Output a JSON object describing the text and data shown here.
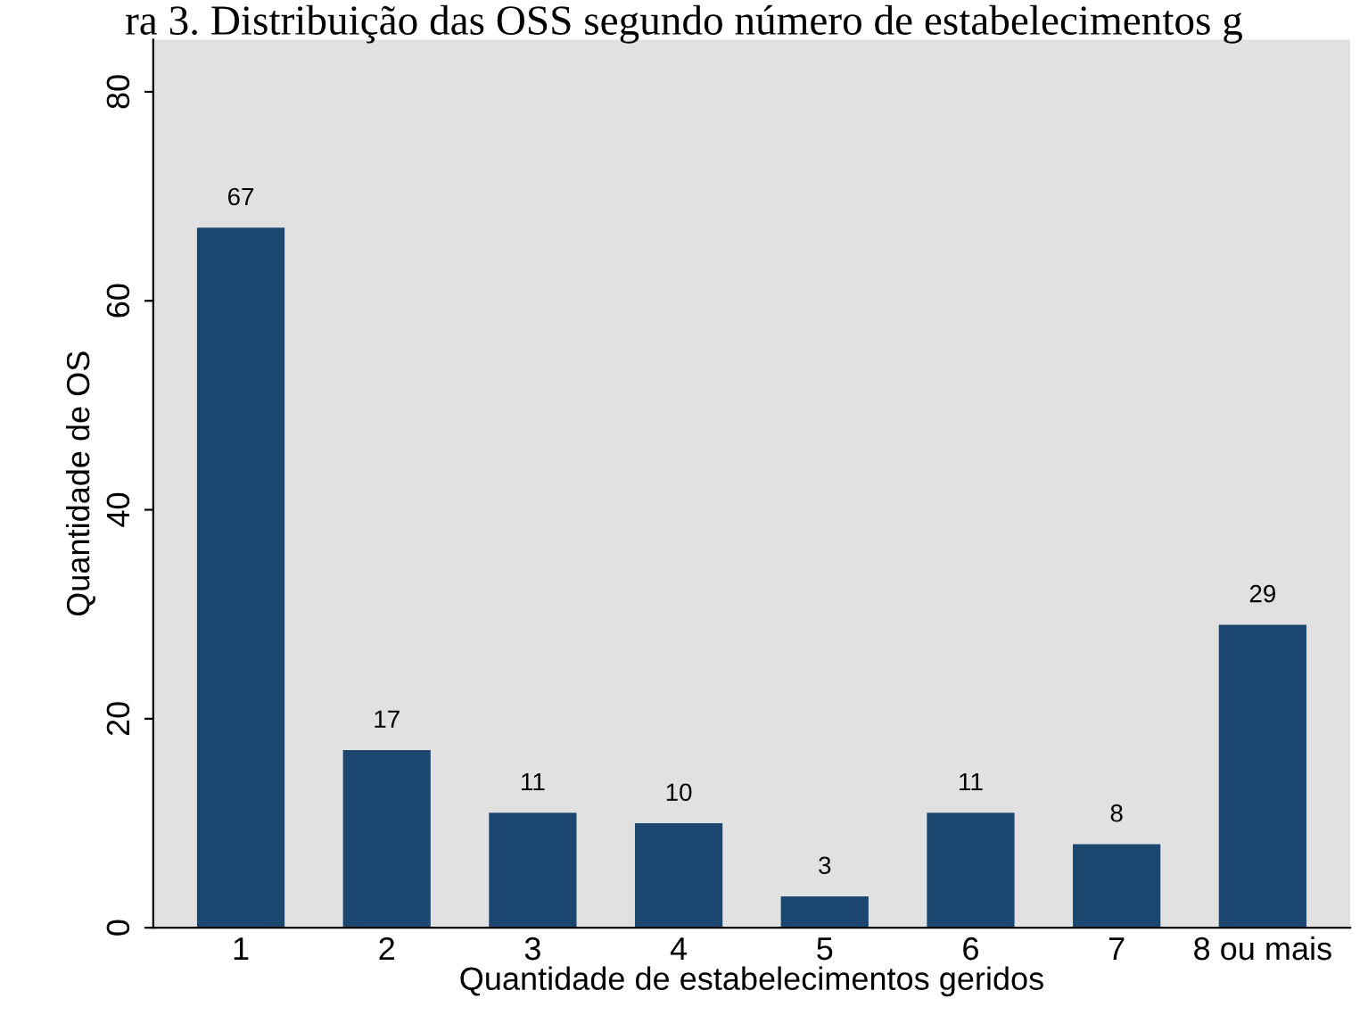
{
  "chart_data": {
    "type": "bar",
    "title": "ra 3. Distribuição das OSS segundo número de estabelecimentos g",
    "xlabel": "Quantidade de estabelecimentos geridos",
    "ylabel": "Quantidade de OS",
    "categories": [
      "1",
      "2",
      "3",
      "4",
      "5",
      "6",
      "7",
      "8 ou mais"
    ],
    "values": [
      67,
      17,
      11,
      10,
      3,
      11,
      8,
      29
    ],
    "color": "#1a4670",
    "ylim": [
      0,
      85
    ],
    "yticks": [
      0,
      20,
      40,
      60,
      80
    ],
    "grid": false,
    "data_labels": true
  }
}
